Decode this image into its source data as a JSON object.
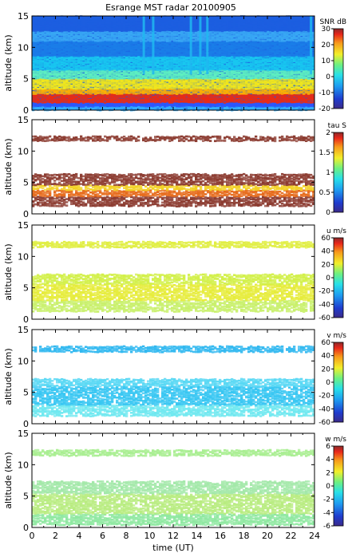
{
  "title": "Esrange MST radar 20100905",
  "chart_data": [
    {
      "type": "heatmap",
      "ylabel": "altitude (km)",
      "ylim": [
        0,
        15
      ],
      "yticks": [
        0,
        5,
        10,
        15
      ],
      "xlim": [
        0,
        24
      ],
      "colorbar": {
        "label": "SNR dB",
        "range": [
          -20,
          30
        ],
        "ticks": [
          30,
          20,
          10,
          0,
          -10,
          -20
        ]
      },
      "layers": [
        {
          "from": 0,
          "to": 0.6,
          "color": "#33b2ff"
        },
        {
          "from": 0.6,
          "to": 1.2,
          "color": "#2f55ff"
        },
        {
          "from": 1.2,
          "to": 2.6,
          "color": "#ee2a10"
        },
        {
          "from": 2.6,
          "to": 3.4,
          "color": "#ffb000"
        },
        {
          "from": 3.4,
          "to": 5.0,
          "color": "#f3e81a"
        },
        {
          "from": 5.0,
          "to": 6.4,
          "color": "#5ef0c0"
        },
        {
          "from": 6.4,
          "to": 8.6,
          "color": "#18c8f0"
        },
        {
          "from": 8.6,
          "to": 11.0,
          "color": "#1a7ee8"
        },
        {
          "from": 11.0,
          "to": 12.6,
          "color": "#38a8f4"
        },
        {
          "from": 12.6,
          "to": 15.0,
          "color": "#1c5ee0"
        }
      ],
      "stripes": [
        9.4,
        10.2,
        13.4,
        14.2,
        14.8,
        23.6
      ],
      "stripe_color": "#20b8f0"
    },
    {
      "type": "heatmap",
      "ylabel": "altitude (km)",
      "ylim": [
        0,
        15
      ],
      "yticks": [
        0,
        5,
        10,
        15
      ],
      "xlim": [
        0,
        24
      ],
      "colorbar": {
        "label": "tau S",
        "range": [
          0,
          2
        ],
        "ticks": [
          2,
          1.5,
          1,
          0.5,
          0
        ]
      },
      "layers": [
        {
          "from": 1.2,
          "to": 2.8,
          "color": "#8b3a2f"
        },
        {
          "from": 2.8,
          "to": 3.8,
          "color": "#e66a1a"
        },
        {
          "from": 3.8,
          "to": 4.6,
          "color": "#f2d020"
        },
        {
          "from": 4.6,
          "to": 6.4,
          "color": "#8b3a2f"
        },
        {
          "from": 11.6,
          "to": 12.4,
          "color": "#8b3a2f"
        }
      ]
    },
    {
      "type": "heatmap",
      "ylabel": "altitude (km)",
      "ylim": [
        0,
        15
      ],
      "yticks": [
        0,
        5,
        10,
        15
      ],
      "xlim": [
        0,
        24
      ],
      "colorbar": {
        "label": "u m/s",
        "range": [
          -60,
          60
        ],
        "ticks": [
          60,
          40,
          20,
          0,
          -20,
          -40,
          -60
        ]
      },
      "layers": [
        {
          "from": 1.2,
          "to": 3.0,
          "color": "#c8f06a"
        },
        {
          "from": 3.0,
          "to": 5.6,
          "color": "#e6ec3a"
        },
        {
          "from": 5.6,
          "to": 7.2,
          "color": "#d2f048"
        },
        {
          "from": 11.4,
          "to": 12.4,
          "color": "#e0ee40"
        }
      ]
    },
    {
      "type": "heatmap",
      "ylabel": "altitude (km)",
      "ylim": [
        0,
        15
      ],
      "yticks": [
        0,
        5,
        10,
        15
      ],
      "xlim": [
        0,
        24
      ],
      "colorbar": {
        "label": "v m/s",
        "range": [
          -60,
          60
        ],
        "ticks": [
          60,
          40,
          20,
          0,
          -20,
          -40,
          -60
        ]
      },
      "layers": [
        {
          "from": 1.2,
          "to": 3.0,
          "color": "#6ee8f0"
        },
        {
          "from": 3.0,
          "to": 6.0,
          "color": "#36c6f2"
        },
        {
          "from": 6.0,
          "to": 7.2,
          "color": "#58d8f4"
        },
        {
          "from": 11.4,
          "to": 12.4,
          "color": "#30b8f0"
        }
      ]
    },
    {
      "type": "heatmap",
      "ylabel": "altitude (km)",
      "ylim": [
        0,
        15
      ],
      "yticks": [
        0,
        5,
        10,
        15
      ],
      "xlim": [
        0,
        24
      ],
      "xlabel": "time (UT)",
      "xticks": [
        0,
        2,
        4,
        6,
        8,
        10,
        12,
        14,
        16,
        18,
        20,
        22,
        24
      ],
      "colorbar": {
        "label": "w m/s",
        "range": [
          -6,
          6
        ],
        "ticks": [
          6,
          4,
          2,
          0,
          -2,
          -4,
          -6
        ]
      },
      "layers": [
        {
          "from": 0.4,
          "to": 2.2,
          "color": "#8ee8a0"
        },
        {
          "from": 2.2,
          "to": 5.4,
          "color": "#b8ec80"
        },
        {
          "from": 5.4,
          "to": 7.4,
          "color": "#a2e8a8"
        },
        {
          "from": 11.4,
          "to": 12.4,
          "color": "#a8ee90"
        }
      ]
    }
  ]
}
